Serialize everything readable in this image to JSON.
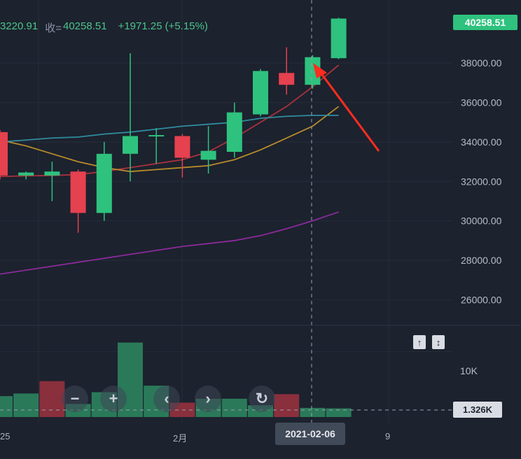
{
  "header": {
    "ohlc_partial_open": "3220.91",
    "close_label": "收=",
    "close_value": "40258.51",
    "change": "+1971.25",
    "change_pct": "(+5.15%)"
  },
  "price_tag": "40258.51",
  "volume_tag": "1.326K",
  "crosshair_date": "2021-02-06",
  "x_ticks": [
    {
      "label": "25",
      "x": 0
    },
    {
      "label": "2月",
      "x": 1
    },
    {
      "label": "9",
      "x": 2
    }
  ],
  "controls": {
    "zoom_out": "−",
    "zoom_in": "+",
    "scroll_left": "‹",
    "scroll_right": "›",
    "reset": "↻"
  },
  "volume_axis_label": "10K",
  "colors": {
    "bull": "#2ec27e",
    "bear": "#e5414f",
    "ma_short": "#a9323d",
    "ma_mid": "#b78b2a",
    "ma_long": "#2f8c9e",
    "ma_longest": "#8a2a9a",
    "arrow": "#ff2d1f"
  },
  "chart_data": {
    "type": "candlestick",
    "title": "",
    "y_ticks": [
      26000,
      28000,
      30000,
      32000,
      34000,
      36000,
      38000
    ],
    "ylim": [
      24700,
      41200
    ],
    "candles": [
      {
        "o": 34500,
        "h": 34600,
        "l": 32100,
        "c": 32300
      },
      {
        "o": 32300,
        "h": 32500,
        "l": 32100,
        "c": 32450
      },
      {
        "o": 32300,
        "h": 33000,
        "l": 31000,
        "c": 32500
      },
      {
        "o": 32500,
        "h": 32600,
        "l": 29400,
        "c": 30400
      },
      {
        "o": 30400,
        "h": 34000,
        "l": 30000,
        "c": 33400
      },
      {
        "o": 33400,
        "h": 38500,
        "l": 32000,
        "c": 34300
      },
      {
        "o": 34300,
        "h": 34700,
        "l": 32900,
        "c": 34350
      },
      {
        "o": 34300,
        "h": 34400,
        "l": 32200,
        "c": 33200
      },
      {
        "o": 33100,
        "h": 34800,
        "l": 32400,
        "c": 33550
      },
      {
        "o": 33500,
        "h": 36000,
        "l": 33200,
        "c": 35500
      },
      {
        "o": 35400,
        "h": 37700,
        "l": 35300,
        "c": 37600
      },
      {
        "o": 37500,
        "h": 38800,
        "l": 36400,
        "c": 36900
      },
      {
        "o": 36900,
        "h": 38400,
        "l": 36700,
        "c": 38300
      },
      {
        "o": 38250,
        "h": 40300,
        "l": 38200,
        "c": 40258.51
      }
    ],
    "ma_series": [
      {
        "color": "#a9323d",
        "values": [
          32250,
          32280,
          32300,
          32350,
          32500,
          32700,
          32900,
          33100,
          33500,
          34200,
          35000,
          35800,
          36800,
          37900
        ]
      },
      {
        "color": "#b78b2a",
        "values": [
          34100,
          33800,
          33400,
          33000,
          32700,
          32500,
          32600,
          32700,
          32800,
          33100,
          33600,
          34200,
          34800,
          35800
        ]
      },
      {
        "color": "#2f8c9e",
        "values": [
          34000,
          34100,
          34200,
          34250,
          34400,
          34500,
          34650,
          34800,
          34900,
          35000,
          35200,
          35300,
          35350,
          35350
        ]
      },
      {
        "color": "#8a2a9a",
        "values": [
          27300,
          27500,
          27700,
          27900,
          28100,
          28300,
          28500,
          28700,
          28850,
          29000,
          29250,
          29600,
          30000,
          30450
        ]
      }
    ],
    "volume": [
      {
        "v": 3.2,
        "dir": "up"
      },
      {
        "v": 3.6,
        "dir": "up"
      },
      {
        "v": 5.5,
        "dir": "down"
      },
      {
        "v": 2.0,
        "dir": "up"
      },
      {
        "v": 3.8,
        "dir": "up"
      },
      {
        "v": 11.4,
        "dir": "up"
      },
      {
        "v": 4.8,
        "dir": "up"
      },
      {
        "v": 2.2,
        "dir": "down"
      },
      {
        "v": 2.8,
        "dir": "up"
      },
      {
        "v": 2.8,
        "dir": "up"
      },
      {
        "v": 1.8,
        "dir": "up"
      },
      {
        "v": 3.5,
        "dir": "down"
      },
      {
        "v": 1.4,
        "dir": "up"
      },
      {
        "v": 1.326,
        "dir": "up"
      }
    ],
    "volume_ylim": [
      0,
      13.5
    ],
    "volume_reference": 1.326
  }
}
